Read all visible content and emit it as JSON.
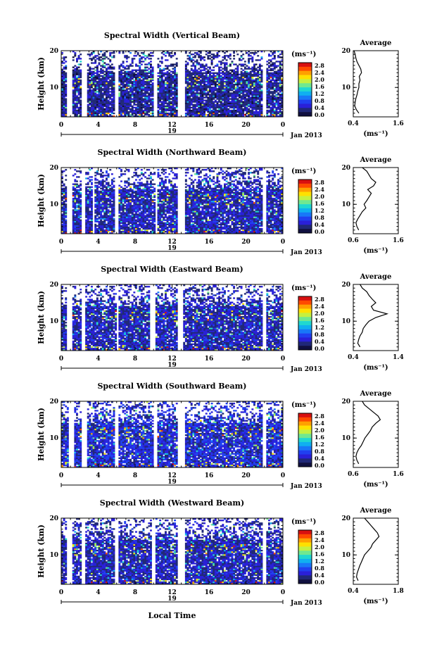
{
  "figure": {
    "xlabel": "Local Time",
    "date_label": "Jan 2013",
    "day_label": "19",
    "colorbar_unit": "(ms⁻¹)",
    "colorbar_ticks": [
      "2.8",
      "2.4",
      "2.0",
      "1.6",
      "1.2",
      "0.8",
      "0.4",
      "0.0"
    ],
    "colorbar_colors": [
      "#d81010",
      "#ff4a00",
      "#ffa000",
      "#ffe000",
      "#c6f040",
      "#70e890",
      "#20d8d0",
      "#10b0f0",
      "#1878f8",
      "#2040f0",
      "#2a20d8",
      "#202878",
      "#101040"
    ]
  },
  "chart_data": [
    {
      "type": "heatmap",
      "title": "Spectral Width (Vertical Beam)",
      "ylabel": "Height (km)",
      "xlim": [
        0,
        24
      ],
      "ylim": [
        2,
        20
      ],
      "xticks": [
        "0",
        "4",
        "8",
        "12",
        "16",
        "20",
        "0"
      ],
      "yticks": [
        "10",
        "20"
      ],
      "value_range": [
        0.0,
        3.0
      ],
      "gaps_hours": [
        [
          0.7,
          1.2
        ],
        [
          2.3,
          2.7
        ],
        [
          5.7,
          6.1
        ],
        [
          10.0,
          10.3
        ],
        [
          12.6,
          13.3
        ],
        [
          21.8,
          22.2
        ]
      ],
      "typical_value": 0.4,
      "avg_profile": {
        "title": "Average",
        "xlabel": "(ms⁻¹)",
        "xlim": [
          0.4,
          1.6
        ],
        "xticks": [
          "0.4",
          "1.6"
        ],
        "yticks": [
          "10",
          "20"
        ],
        "heights": [
          3,
          4,
          5,
          6,
          7,
          8,
          9,
          10,
          11,
          12,
          13,
          14,
          15,
          16,
          17,
          18,
          19,
          20
        ],
        "values": [
          0.55,
          0.48,
          0.44,
          0.45,
          0.47,
          0.5,
          0.52,
          0.55,
          0.55,
          0.58,
          0.56,
          0.62,
          0.6,
          0.55,
          0.5,
          0.47,
          0.45,
          0.42
        ]
      }
    },
    {
      "type": "heatmap",
      "title": "Spectral Width (Northward Beam)",
      "ylabel": "Height (km)",
      "xlim": [
        0,
        24
      ],
      "ylim": [
        2,
        20
      ],
      "xticks": [
        "0",
        "4",
        "8",
        "12",
        "16",
        "20",
        "0"
      ],
      "yticks": [
        "10",
        "20"
      ],
      "value_range": [
        0.0,
        3.0
      ],
      "gaps_hours": [
        [
          0.6,
          1.1
        ],
        [
          2.1,
          2.5
        ],
        [
          3.4,
          3.6
        ],
        [
          5.8,
          6.1
        ],
        [
          10.2,
          10.4
        ],
        [
          12.7,
          13.3
        ],
        [
          21.8,
          22.1
        ]
      ],
      "typical_value": 0.5,
      "avg_profile": {
        "title": "Average",
        "xlabel": "(ms⁻¹)",
        "xlim": [
          0.6,
          1.6
        ],
        "xticks": [
          "0.6",
          "1.6"
        ],
        "yticks": [
          "10",
          "20"
        ],
        "heights": [
          3,
          4,
          5,
          6,
          7,
          8,
          9,
          10,
          11,
          12,
          13,
          14,
          15,
          16,
          17,
          18,
          19,
          20
        ],
        "values": [
          0.72,
          0.68,
          0.66,
          0.7,
          0.75,
          0.8,
          0.88,
          0.84,
          0.9,
          0.95,
          1.0,
          0.92,
          1.05,
          1.1,
          1.0,
          0.95,
          0.9,
          0.8
        ]
      }
    },
    {
      "type": "heatmap",
      "title": "Spectral Width (Eastward Beam)",
      "ylabel": "Height (km)",
      "xlim": [
        0,
        24
      ],
      "ylim": [
        2,
        20
      ],
      "xticks": [
        "0",
        "4",
        "8",
        "12",
        "16",
        "20",
        "0"
      ],
      "yticks": [
        "10",
        "20"
      ],
      "value_range": [
        0.0,
        3.0
      ],
      "gaps_hours": [
        [
          0.7,
          1.2
        ],
        [
          2.2,
          2.6
        ],
        [
          5.9,
          6.2
        ],
        [
          9.7,
          10.1
        ],
        [
          12.7,
          13.2
        ],
        [
          21.8,
          22.2
        ]
      ],
      "typical_value": 0.5,
      "avg_profile": {
        "title": "Average",
        "xlabel": "(ms⁻¹)",
        "xlim": [
          0.4,
          1.4
        ],
        "xticks": [
          "0.4",
          "1.4"
        ],
        "yticks": [
          "10",
          "20"
        ],
        "heights": [
          3,
          4,
          5,
          6,
          7,
          8,
          9,
          10,
          11,
          12,
          13,
          14,
          15,
          16,
          17,
          18,
          19,
          20
        ],
        "values": [
          0.55,
          0.5,
          0.52,
          0.55,
          0.6,
          0.62,
          0.68,
          0.75,
          0.9,
          1.15,
          0.85,
          0.8,
          0.9,
          0.82,
          0.75,
          0.7,
          0.6,
          0.55
        ]
      }
    },
    {
      "type": "heatmap",
      "title": "Spectral Width (Southward Beam)",
      "ylabel": "Height (km)",
      "xlim": [
        0,
        24
      ],
      "ylim": [
        2,
        20
      ],
      "xticks": [
        "0",
        "4",
        "8",
        "12",
        "16",
        "20",
        "0"
      ],
      "yticks": [
        "10",
        "20"
      ],
      "value_range": [
        0.0,
        3.0
      ],
      "gaps_hours": [
        [
          0.8,
          1.3
        ],
        [
          2.3,
          2.7
        ],
        [
          5.8,
          6.1
        ],
        [
          10.0,
          10.3
        ],
        [
          12.6,
          13.3
        ],
        [
          21.8,
          22.1
        ]
      ],
      "typical_value": 0.6,
      "avg_profile": {
        "title": "Average",
        "xlabel": "(ms⁻¹)",
        "xlim": [
          0.6,
          1.6
        ],
        "xticks": [
          "0.6",
          "1.6"
        ],
        "yticks": [
          "10",
          "20"
        ],
        "heights": [
          3,
          4,
          5,
          6,
          7,
          8,
          9,
          10,
          11,
          12,
          13,
          14,
          15,
          16,
          17,
          18,
          19,
          20
        ],
        "values": [
          0.72,
          0.68,
          0.66,
          0.68,
          0.72,
          0.78,
          0.82,
          0.86,
          0.92,
          0.98,
          1.02,
          1.1,
          1.2,
          1.15,
          1.05,
          0.95,
          0.85,
          0.8
        ]
      }
    },
    {
      "type": "heatmap",
      "title": "Spectral Width (Westward Beam)",
      "ylabel": "Height (km)",
      "xlim": [
        0,
        24
      ],
      "ylim": [
        2,
        20
      ],
      "xticks": [
        "0",
        "4",
        "8",
        "12",
        "16",
        "20",
        "0"
      ],
      "yticks": [
        "10",
        "20"
      ],
      "value_range": [
        0.0,
        3.0
      ],
      "gaps_hours": [
        [
          0.7,
          1.2
        ],
        [
          2.2,
          2.6
        ],
        [
          5.7,
          6.1
        ],
        [
          9.8,
          10.2
        ],
        [
          12.7,
          13.3
        ],
        [
          21.8,
          22.1
        ]
      ],
      "typical_value": 0.5,
      "avg_profile": {
        "title": "Average",
        "xlabel": "(ms⁻¹)",
        "xlim": [
          0.4,
          1.8
        ],
        "xticks": [
          "0.4",
          "1.8"
        ],
        "yticks": [
          "10",
          "20"
        ],
        "heights": [
          3,
          4,
          5,
          6,
          7,
          8,
          9,
          10,
          11,
          12,
          13,
          14,
          15,
          16,
          17,
          18,
          19,
          20
        ],
        "values": [
          0.55,
          0.5,
          0.52,
          0.56,
          0.6,
          0.65,
          0.7,
          0.75,
          0.85,
          0.95,
          1.0,
          1.1,
          1.2,
          1.15,
          1.05,
          0.95,
          0.85,
          0.75
        ]
      }
    }
  ]
}
